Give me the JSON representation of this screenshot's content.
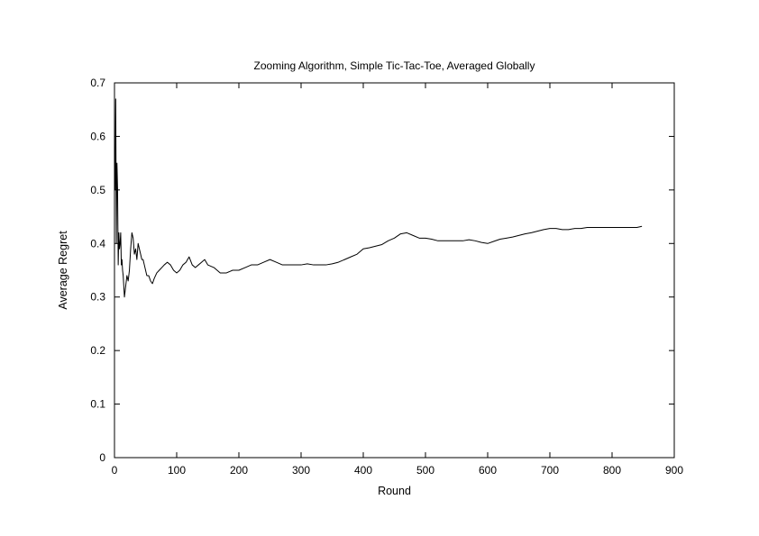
{
  "chart_data": {
    "type": "line",
    "title": "Zooming Algorithm, Simple Tic-Tac-Toe, Averaged Globally",
    "xlabel": "Round",
    "ylabel": "Average Regret",
    "xlim": [
      0,
      900
    ],
    "ylim": [
      0,
      0.7
    ],
    "xticks": [
      "0",
      "100",
      "200",
      "300",
      "400",
      "500",
      "600",
      "700",
      "800",
      "900"
    ],
    "yticks": [
      "0",
      "0.1",
      "0.2",
      "0.3",
      "0.4",
      "0.5",
      "0.6",
      "0.7"
    ],
    "grid": false,
    "line_color": "#000000",
    "series": [
      {
        "x": [
          1,
          2,
          3,
          4,
          5,
          6,
          7,
          8,
          9,
          10,
          11,
          12,
          13,
          14,
          15,
          16,
          18,
          20,
          22,
          24,
          26,
          28,
          30,
          32,
          34,
          36,
          38,
          40,
          42,
          44,
          46,
          48,
          50,
          52,
          55,
          58,
          61,
          64,
          68,
          72,
          76,
          80,
          85,
          90,
          95,
          100,
          105,
          110,
          115,
          120,
          125,
          130,
          135,
          140,
          145,
          150,
          160,
          170,
          180,
          190,
          200,
          210,
          220,
          230,
          240,
          250,
          260,
          270,
          280,
          290,
          300,
          310,
          320,
          330,
          340,
          350,
          360,
          370,
          380,
          390,
          400,
          410,
          420,
          430,
          440,
          450,
          460,
          470,
          480,
          490,
          500,
          510,
          520,
          530,
          540,
          550,
          560,
          570,
          580,
          590,
          600,
          610,
          620,
          630,
          640,
          650,
          660,
          670,
          680,
          690,
          700,
          710,
          720,
          730,
          740,
          750,
          760,
          770,
          780,
          790,
          800,
          810,
          820,
          830,
          840,
          848
        ],
        "y": [
          0.5,
          0.67,
          0.4,
          0.55,
          0.5,
          0.36,
          0.42,
          0.39,
          0.4,
          0.42,
          0.36,
          0.37,
          0.35,
          0.34,
          0.32,
          0.3,
          0.32,
          0.34,
          0.33,
          0.35,
          0.39,
          0.42,
          0.41,
          0.38,
          0.39,
          0.37,
          0.4,
          0.39,
          0.38,
          0.37,
          0.37,
          0.36,
          0.35,
          0.34,
          0.34,
          0.33,
          0.325,
          0.335,
          0.345,
          0.35,
          0.355,
          0.36,
          0.365,
          0.36,
          0.35,
          0.345,
          0.35,
          0.36,
          0.365,
          0.375,
          0.36,
          0.355,
          0.36,
          0.365,
          0.37,
          0.36,
          0.355,
          0.345,
          0.345,
          0.35,
          0.35,
          0.355,
          0.36,
          0.36,
          0.365,
          0.37,
          0.365,
          0.36,
          0.36,
          0.36,
          0.36,
          0.362,
          0.36,
          0.36,
          0.36,
          0.362,
          0.365,
          0.37,
          0.375,
          0.38,
          0.39,
          0.392,
          0.395,
          0.398,
          0.405,
          0.41,
          0.418,
          0.42,
          0.415,
          0.41,
          0.41,
          0.408,
          0.405,
          0.405,
          0.405,
          0.405,
          0.405,
          0.407,
          0.405,
          0.402,
          0.4,
          0.404,
          0.408,
          0.41,
          0.412,
          0.415,
          0.418,
          0.42,
          0.423,
          0.426,
          0.428,
          0.428,
          0.426,
          0.426,
          0.428,
          0.428,
          0.43,
          0.43,
          0.43,
          0.43,
          0.43,
          0.43,
          0.43,
          0.43,
          0.43,
          0.432
        ]
      }
    ]
  }
}
